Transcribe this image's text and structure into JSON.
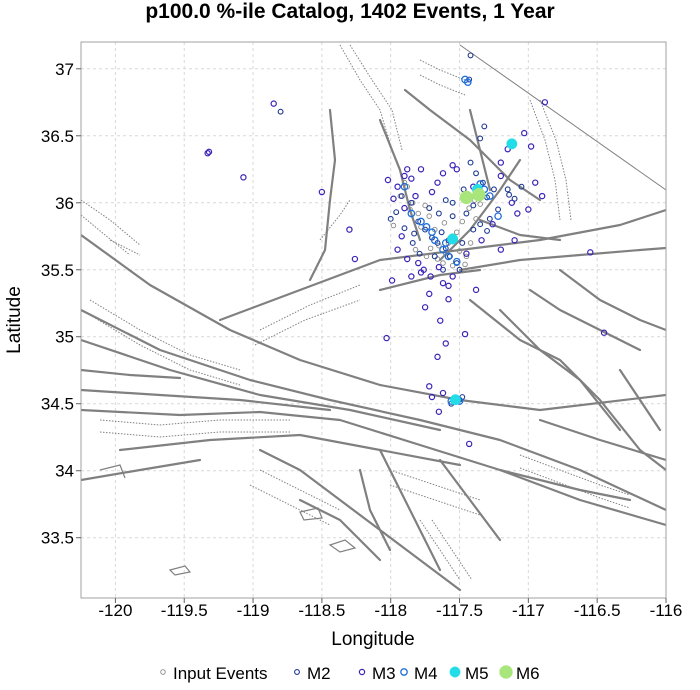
{
  "chart_data": {
    "type": "scatter",
    "title": "p100.0 %-ile Catalog, 1402 Events, 1 Year",
    "xlabel": "Longitude",
    "ylabel": "Latitude",
    "xlim": [
      -120.25,
      -116.0
    ],
    "ylim": [
      33.05,
      37.2
    ],
    "x_ticks": [
      -120,
      -119.5,
      -119,
      -118.5,
      -118,
      -117.5,
      -117,
      -116.5,
      -116
    ],
    "x_tick_labels": [
      "-120",
      "-119.5",
      "-119",
      "-118.5",
      "-118",
      "-117.5",
      "-117",
      "-116.5",
      "-116"
    ],
    "y_ticks": [
      33.5,
      34,
      34.5,
      35,
      35.5,
      36,
      36.5,
      37
    ],
    "y_tick_labels": [
      "33.5",
      "34",
      "34.5",
      "35",
      "35.5",
      "36",
      "36.5",
      "37"
    ],
    "grid": true,
    "legend_position": "bottom",
    "legend": [
      {
        "label": "Input Events",
        "color": "#888888",
        "filled": false
      },
      {
        "label": "M2",
        "color": "#1f3a93",
        "filled": false
      },
      {
        "label": "M3",
        "color": "#3a22b8",
        "filled": false
      },
      {
        "label": "M4",
        "color": "#1e6fd9",
        "filled": false
      },
      {
        "label": "M5",
        "color": "#22dde8",
        "filled": true
      },
      {
        "label": "M6",
        "color": "#a8e67c",
        "filled": true
      }
    ],
    "series": [
      {
        "name": "Input Events",
        "color": "#888888",
        "points": [
          [
            -117.78,
            35.82
          ],
          [
            -117.7,
            35.74
          ],
          [
            -117.65,
            35.68
          ],
          [
            -117.6,
            35.62
          ],
          [
            -117.58,
            35.7
          ],
          [
            -117.72,
            35.9
          ],
          [
            -117.52,
            35.78
          ],
          [
            -117.48,
            35.86
          ],
          [
            -117.43,
            35.96
          ],
          [
            -117.39,
            36.02
          ],
          [
            -117.84,
            36.0
          ],
          [
            -117.88,
            36.12
          ],
          [
            -117.62,
            35.55
          ],
          [
            -117.55,
            35.53
          ],
          [
            -117.45,
            35.6
          ],
          [
            -117.68,
            35.8
          ],
          [
            -117.8,
            35.92
          ],
          [
            -117.35,
            35.99
          ],
          [
            -117.9,
            36.15
          ],
          [
            -117.98,
            35.83
          ],
          [
            -117.66,
            35.58
          ],
          [
            -117.74,
            35.6
          ],
          [
            -117.5,
            35.64
          ],
          [
            -117.42,
            35.7
          ],
          [
            -117.86,
            35.95
          ],
          [
            -117.55,
            35.75
          ],
          [
            -117.93,
            36.05
          ],
          [
            -117.61,
            35.85
          ],
          [
            -117.46,
            35.54
          ],
          [
            -117.71,
            35.66
          ],
          [
            -117.82,
            35.65
          ],
          [
            -117.38,
            35.88
          ],
          [
            -117.75,
            35.98
          ]
        ]
      },
      {
        "name": "M2",
        "color": "#1f3a93",
        "points": [
          [
            -117.8,
            35.86
          ],
          [
            -117.75,
            35.8
          ],
          [
            -117.7,
            35.74
          ],
          [
            -117.66,
            35.7
          ],
          [
            -117.6,
            35.66
          ],
          [
            -117.57,
            35.6
          ],
          [
            -117.52,
            35.55
          ],
          [
            -117.63,
            35.78
          ],
          [
            -117.68,
            35.6
          ],
          [
            -117.48,
            35.7
          ],
          [
            -117.45,
            35.92
          ],
          [
            -117.4,
            35.98
          ],
          [
            -117.35,
            36.08
          ],
          [
            -117.3,
            36.04
          ],
          [
            -117.25,
            36.1
          ],
          [
            -117.22,
            35.95
          ],
          [
            -117.28,
            35.88
          ],
          [
            -117.33,
            36.15
          ],
          [
            -117.38,
            36.22
          ],
          [
            -117.42,
            36.3
          ],
          [
            -117.55,
            36.0
          ],
          [
            -117.6,
            36.02
          ],
          [
            -117.85,
            36.0
          ],
          [
            -117.92,
            36.05
          ],
          [
            -117.96,
            35.93
          ],
          [
            -118.0,
            35.88
          ],
          [
            -117.84,
            35.7
          ],
          [
            -117.79,
            35.62
          ],
          [
            -117.5,
            35.5
          ],
          [
            -117.47,
            36.1
          ],
          [
            -117.15,
            36.1
          ],
          [
            -117.1,
            36.03
          ],
          [
            -117.05,
            36.12
          ],
          [
            -117.4,
            35.8
          ],
          [
            -117.55,
            35.9
          ],
          [
            -117.65,
            35.92
          ],
          [
            -117.72,
            35.96
          ],
          [
            -117.9,
            35.81
          ],
          [
            -117.83,
            35.77
          ],
          [
            -117.58,
            35.72
          ],
          [
            -117.62,
            35.5
          ],
          [
            -117.35,
            35.84
          ],
          [
            -117.3,
            35.79
          ],
          [
            -117.56,
            34.5
          ],
          [
            -117.5,
            34.53
          ],
          [
            -117.48,
            34.55
          ],
          [
            -117.35,
            36.48
          ],
          [
            -117.32,
            36.57
          ],
          [
            -117.43,
            36.92
          ],
          [
            -117.42,
            37.1
          ],
          [
            -118.8,
            36.68
          ],
          [
            -117.14,
            36.06
          ]
        ]
      },
      {
        "name": "M3",
        "color": "#3a22b8",
        "points": [
          [
            -119.33,
            36.37
          ],
          [
            -119.32,
            36.38
          ],
          [
            -119.07,
            36.19
          ],
          [
            -118.85,
            36.74
          ],
          [
            -118.5,
            36.08
          ],
          [
            -118.3,
            35.8
          ],
          [
            -118.02,
            36.17
          ],
          [
            -117.95,
            36.12
          ],
          [
            -117.98,
            36.03
          ],
          [
            -117.92,
            35.75
          ],
          [
            -117.95,
            35.65
          ],
          [
            -117.88,
            35.58
          ],
          [
            -117.8,
            35.55
          ],
          [
            -117.78,
            35.48
          ],
          [
            -117.71,
            35.45
          ],
          [
            -117.65,
            35.52
          ],
          [
            -117.55,
            35.45
          ],
          [
            -117.62,
            35.4
          ],
          [
            -117.72,
            35.32
          ],
          [
            -117.58,
            35.28
          ],
          [
            -117.75,
            35.22
          ],
          [
            -117.64,
            35.12
          ],
          [
            -117.46,
            35.02
          ],
          [
            -117.6,
            34.95
          ],
          [
            -117.66,
            34.85
          ],
          [
            -117.62,
            34.58
          ],
          [
            -117.7,
            34.55
          ],
          [
            -117.72,
            34.63
          ],
          [
            -117.65,
            34.44
          ],
          [
            -117.43,
            34.2
          ],
          [
            -117.38,
            35.35
          ],
          [
            -117.55,
            36.28
          ],
          [
            -117.62,
            36.22
          ],
          [
            -117.66,
            36.15
          ],
          [
            -117.52,
            36.25
          ],
          [
            -117.4,
            36.12
          ],
          [
            -117.2,
            36.3
          ],
          [
            -117.12,
            36.0
          ],
          [
            -117.08,
            35.92
          ],
          [
            -117.0,
            35.95
          ],
          [
            -116.95,
            36.15
          ],
          [
            -116.9,
            36.05
          ],
          [
            -116.98,
            36.42
          ],
          [
            -117.03,
            36.52
          ],
          [
            -116.88,
            36.75
          ],
          [
            -116.55,
            35.63
          ],
          [
            -116.45,
            35.03
          ],
          [
            -117.2,
            35.65
          ],
          [
            -117.1,
            35.72
          ],
          [
            -117.26,
            35.84
          ],
          [
            -117.85,
            36.18
          ],
          [
            -117.88,
            36.25
          ],
          [
            -117.9,
            36.2
          ],
          [
            -117.99,
            35.42
          ],
          [
            -118.26,
            35.58
          ],
          [
            -117.78,
            36.25
          ],
          [
            -117.15,
            36.4
          ],
          [
            -117.9,
            35.96
          ],
          [
            -117.45,
            35.62
          ],
          [
            -117.34,
            35.72
          ],
          [
            -118.03,
            34.99
          ],
          [
            -117.85,
            35.45
          ],
          [
            -117.2,
            36.2
          ],
          [
            -117.7,
            36.08
          ],
          [
            -117.82,
            36.05
          ],
          [
            -117.76,
            35.5
          ],
          [
            -117.58,
            35.38
          ]
        ]
      },
      {
        "name": "M4",
        "color": "#1e6fd9",
        "points": [
          [
            -117.46,
            36.92
          ],
          [
            -117.44,
            36.9
          ],
          [
            -117.9,
            36.12
          ],
          [
            -117.85,
            35.92
          ],
          [
            -117.78,
            35.86
          ],
          [
            -117.68,
            35.72
          ],
          [
            -117.62,
            35.65
          ],
          [
            -117.58,
            35.6
          ],
          [
            -117.52,
            35.56
          ],
          [
            -117.32,
            36.1
          ],
          [
            -117.28,
            36.05
          ],
          [
            -117.35,
            36.14
          ],
          [
            -117.22,
            35.9
          ],
          [
            -117.56,
            34.52
          ],
          [
            -117.5,
            34.52
          ],
          [
            -117.12,
            36.44
          ],
          [
            -117.7,
            35.78
          ],
          [
            -117.74,
            35.82
          ],
          [
            -117.6,
            35.7
          ]
        ]
      },
      {
        "name": "M5",
        "color": "#22dde8",
        "points": [
          [
            -117.37,
            36.1
          ],
          [
            -117.55,
            35.73
          ],
          [
            -117.53,
            34.53
          ],
          [
            -117.12,
            36.44
          ]
        ]
      },
      {
        "name": "M6",
        "color": "#a8e67c",
        "points": [
          [
            -117.45,
            36.04
          ],
          [
            -117.36,
            36.06
          ]
        ]
      }
    ]
  }
}
